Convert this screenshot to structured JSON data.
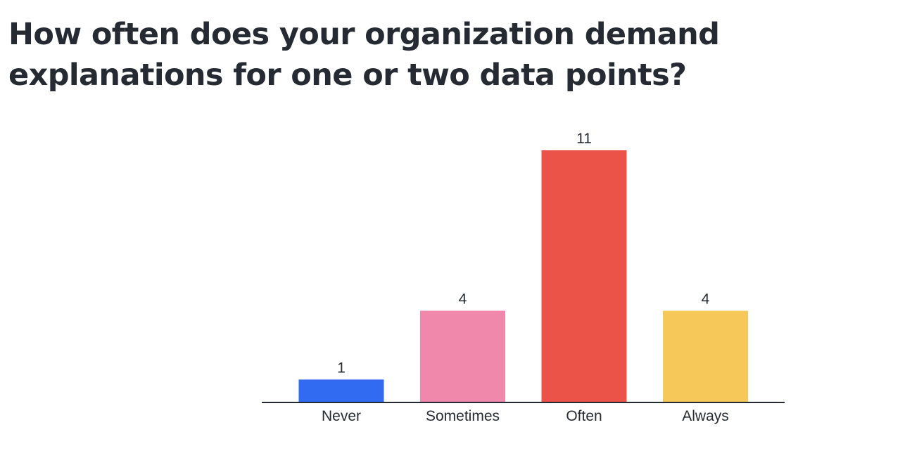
{
  "title": "How often does your organization demand explanations for one or two data points?",
  "chart_data": {
    "type": "bar",
    "title": "How often does your organization demand explanations for one or two data points?",
    "categories": [
      "Never",
      "Sometimes",
      "Often",
      "Always"
    ],
    "values": [
      1,
      4,
      11,
      4
    ],
    "colors": [
      "#316bf2",
      "#f088ab",
      "#eb5349",
      "#f6c85a"
    ],
    "xlabel": "",
    "ylabel": "",
    "ylim": [
      0,
      11
    ],
    "grid": false,
    "legend": "none"
  }
}
